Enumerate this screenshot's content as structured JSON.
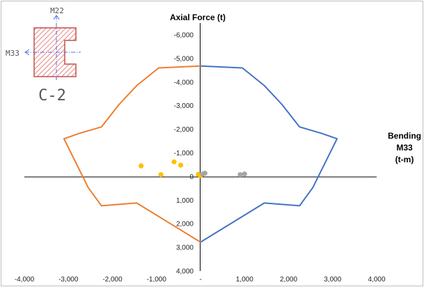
{
  "chart_data": {
    "type": "scatter",
    "title": "Axial Force  (t)",
    "ylabel_lines": [
      "Bending",
      "M33",
      "(t-m)"
    ],
    "xlim": [
      -4000,
      4000
    ],
    "ylim": [
      -6000,
      4000
    ],
    "y_reversed": true,
    "grid": false,
    "x_ticks": [
      {
        "value": -4000,
        "label": "-4,000"
      },
      {
        "value": -3000,
        "label": "-3,000"
      },
      {
        "value": -2000,
        "label": "-2,000"
      },
      {
        "value": -1000,
        "label": "-1,000"
      },
      {
        "value": 0,
        "label": "-"
      },
      {
        "value": 1000,
        "label": "1,000"
      },
      {
        "value": 2000,
        "label": "2,000"
      },
      {
        "value": 3000,
        "label": "3,000"
      },
      {
        "value": 4000,
        "label": "4,000"
      }
    ],
    "y_ticks": [
      {
        "value": -6000,
        "label": "-6,000"
      },
      {
        "value": -5000,
        "label": "-5,000"
      },
      {
        "value": -4000,
        "label": "-4,000"
      },
      {
        "value": -3000,
        "label": "-3,000"
      },
      {
        "value": -2000,
        "label": "-2,000"
      },
      {
        "value": -1000,
        "label": "-1,000"
      },
      {
        "value": 0,
        "label": "0"
      },
      {
        "value": 1000,
        "label": "1,000"
      },
      {
        "value": 2000,
        "label": "2,000"
      },
      {
        "value": 3000,
        "label": "3,000"
      },
      {
        "value": 4000,
        "label": "4,000"
      }
    ],
    "series": [
      {
        "kind": "line",
        "color": "#4472c4",
        "x": [
          0,
          950,
          1450,
          1850,
          2250,
          2750,
          3100,
          2550,
          2250,
          1450,
          0
        ],
        "y": [
          -4680,
          -4600,
          -3850,
          -3050,
          -2100,
          -1830,
          -1600,
          470,
          1240,
          1120,
          2780
        ]
      },
      {
        "kind": "line",
        "color": "#ed7d31",
        "x": [
          0,
          -950,
          -1450,
          -1850,
          -2250,
          -2750,
          -3100,
          -2550,
          -2250,
          -1450,
          0
        ],
        "y": [
          -4680,
          -4600,
          -3850,
          -3050,
          -2100,
          -1830,
          -1600,
          470,
          1240,
          1120,
          2780
        ]
      },
      {
        "kind": "scatter",
        "color": "#ffc000",
        "x": [
          -1350,
          -900,
          -600,
          -450,
          -50,
          0
        ],
        "y": [
          -450,
          -80,
          -620,
          -480,
          -90,
          -40
        ]
      },
      {
        "kind": "scatter",
        "color": "#a5a5a5",
        "x": [
          50,
          100,
          900,
          1000
        ],
        "y": [
          -100,
          -140,
          -80,
          -110
        ]
      }
    ],
    "inset": {
      "top_axis_label": "M22",
      "side_axis_label": "M33",
      "section_label": "C-2",
      "hatch_color": "#e06666",
      "axis_color": "#4a6fe3"
    }
  }
}
